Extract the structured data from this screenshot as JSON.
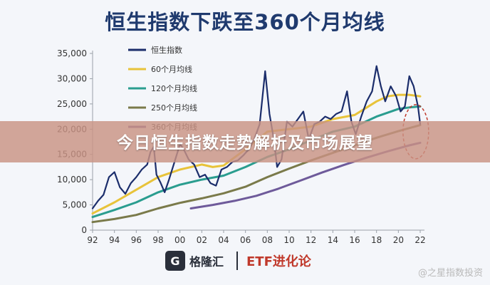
{
  "chart_data": {
    "type": "line",
    "title": "恒生指数下跌至360个月均线",
    "xlabel": "",
    "ylabel": "",
    "xlim": [
      1992,
      2022
    ],
    "ylim": [
      0,
      35000
    ],
    "x_ticks": [
      "92",
      "94",
      "96",
      "98",
      "00",
      "02",
      "04",
      "06",
      "08",
      "10",
      "12",
      "14",
      "16",
      "18",
      "20",
      "22"
    ],
    "y_ticks": [
      "0",
      "5,000",
      "10,000",
      "15,000",
      "20,000",
      "25,000",
      "30,000",
      "35,000"
    ],
    "grid": false,
    "legend_position": "top-left",
    "series": [
      {
        "name": "恒生指数",
        "color": "#1b2d6b",
        "x": [
          1992.0,
          1992.5,
          1993.0,
          1993.5,
          1994.0,
          1994.5,
          1995.0,
          1995.5,
          1996.0,
          1996.5,
          1997.0,
          1997.3,
          1997.6,
          1997.85,
          1998.2,
          1998.6,
          1999.0,
          1999.5,
          2000.0,
          2000.3,
          2000.8,
          2001.3,
          2001.8,
          2002.3,
          2002.8,
          2003.3,
          2003.8,
          2004.3,
          2004.8,
          2005.3,
          2005.8,
          2006.3,
          2006.8,
          2007.3,
          2007.8,
          2008.2,
          2008.6,
          2008.9,
          2009.3,
          2009.8,
          2010.3,
          2010.8,
          2011.3,
          2011.8,
          2012.3,
          2012.8,
          2013.3,
          2013.8,
          2014.3,
          2014.8,
          2015.3,
          2015.7,
          2016.1,
          2016.6,
          2017.1,
          2017.6,
          2018.0,
          2018.4,
          2018.8,
          2019.3,
          2019.8,
          2020.2,
          2020.6,
          2021.0,
          2021.4,
          2021.8,
          2022.0
        ],
        "values": [
          4300,
          5800,
          7000,
          10500,
          11500,
          8500,
          7200,
          9300,
          10500,
          12000,
          13000,
          15500,
          16500,
          11000,
          9500,
          7500,
          10000,
          13500,
          17000,
          16200,
          14000,
          13000,
          10500,
          11000,
          9300,
          8800,
          12000,
          12500,
          13500,
          13800,
          14800,
          16000,
          18000,
          21000,
          31500,
          23000,
          18000,
          12500,
          14000,
          21500,
          20500,
          22000,
          23500,
          18000,
          21000,
          21500,
          22500,
          22000,
          23000,
          23500,
          27500,
          21500,
          19000,
          22500,
          25500,
          27500,
          32500,
          28500,
          25500,
          28500,
          26500,
          23500,
          24500,
          30500,
          28500,
          24500,
          21000
        ]
      },
      {
        "name": "60个月均线",
        "color": "#e8c33a",
        "x": [
          1992,
          1994,
          1996,
          1998,
          2000,
          2002,
          2003,
          2004,
          2006,
          2008,
          2010,
          2012,
          2014,
          2016,
          2018,
          2019,
          2020,
          2021,
          2022
        ],
        "values": [
          3300,
          5500,
          8000,
          10500,
          12000,
          13000,
          12500,
          12800,
          16000,
          19500,
          20000,
          20500,
          22000,
          22800,
          25500,
          26500,
          26800,
          26800,
          26500
        ]
      },
      {
        "name": "120个月均线",
        "color": "#2a9d8f",
        "x": [
          1992,
          1994,
          1996,
          1998,
          2000,
          2002,
          2004,
          2006,
          2008,
          2010,
          2012,
          2014,
          2016,
          2018,
          2020,
          2021,
          2022
        ],
        "values": [
          2600,
          4000,
          5500,
          7500,
          9000,
          10000,
          10800,
          12500,
          14500,
          16000,
          17800,
          19500,
          20500,
          22500,
          24000,
          24300,
          24500
        ]
      },
      {
        "name": "250个月均线",
        "color": "#7a7a4a",
        "x": [
          1992,
          1994,
          1996,
          1998,
          2000,
          2002,
          2004,
          2006,
          2008,
          2010,
          2012,
          2014,
          2016,
          2018,
          2020,
          2022
        ],
        "values": [
          1600,
          2200,
          3000,
          4300,
          5400,
          6300,
          7300,
          8600,
          10500,
          12200,
          13800,
          15300,
          16800,
          18300,
          19600,
          20800
        ]
      },
      {
        "name": "360个月均线",
        "color": "#6e5a9a",
        "x": [
          2001,
          2003,
          2005,
          2007,
          2009,
          2011,
          2013,
          2015,
          2017,
          2019,
          2021,
          2022
        ],
        "values": [
          4300,
          5000,
          5800,
          6800,
          8200,
          9800,
          11400,
          12900,
          14300,
          15600,
          16800,
          17300
        ]
      }
    ],
    "annotations": [
      {
        "shape": "dashed-ellipse",
        "color": "#c0392b",
        "center": [
          2021.6,
          19500
        ]
      }
    ]
  },
  "banner": {
    "text": "今日恒生指数走势解析及市场展望"
  },
  "footer": {
    "logo_mark": "G",
    "logo_name": "格隆汇",
    "etf_text": "ETF进化论"
  },
  "watermark": {
    "text": "@之星指数投资"
  }
}
